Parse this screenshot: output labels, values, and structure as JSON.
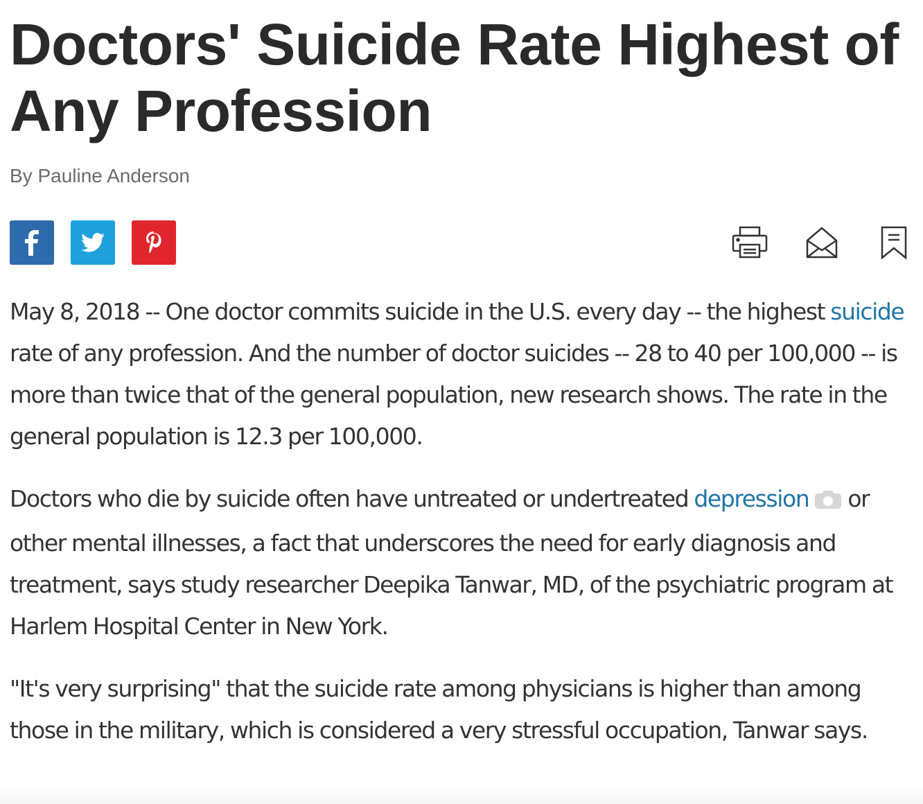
{
  "headline": "Doctors' Suicide Rate Highest of Any Profession",
  "byline": "By Pauline Anderson",
  "share": {
    "facebook_icon": "facebook-icon",
    "twitter_icon": "twitter-icon",
    "pinterest_icon": "pinterest-icon",
    "colors": {
      "facebook": "#2f6aad",
      "twitter": "#1ea0dc",
      "pinterest": "#e0262c"
    }
  },
  "tools": {
    "print_icon": "print-icon",
    "email_icon": "envelope-icon",
    "save_icon": "bookmark-icon"
  },
  "article": {
    "p1": {
      "a": "May 8, 2018 -- One doctor commits suicide in the U.S. every day -- the highest ",
      "link": "suicide",
      "b": " rate of any profession. And the number of doctor suicides -- 28 to 40 per 100,000 -- is more than twice that of the general population, new research shows. The rate in the general population is 12.3 per 100,000."
    },
    "p2": {
      "a": "Doctors who die by suicide often have untreated or undertreated ",
      "link": "depression",
      "b": "or other mental illnesses, a fact that underscores the need for early diagnosis and treatment, says study researcher Deepika Tanwar, MD, of the psychiatric program at Harlem Hospital Center in New York."
    },
    "p3": "\"It's very surprising\" that the suicide rate among physicians is higher than among those in the military, which is considered a very stressful occupation, Tanwar says.",
    "link_color": "#1f75a8"
  }
}
